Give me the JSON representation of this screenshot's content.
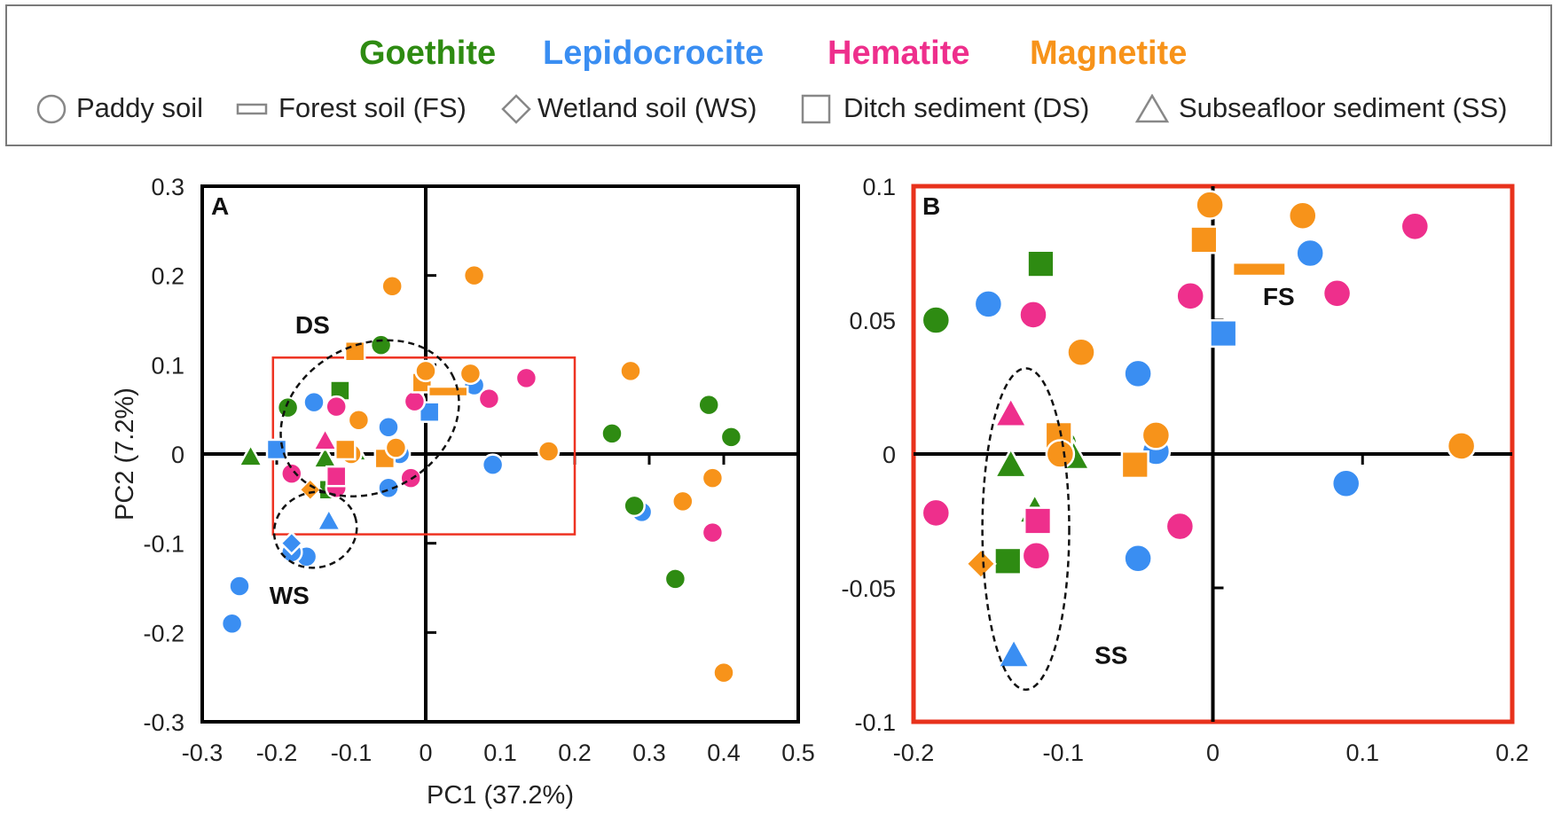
{
  "legend": {
    "minerals": [
      {
        "label": "Goethite",
        "color": "#2e8b12"
      },
      {
        "label": "Lepidocrocite",
        "color": "#3a8ef2"
      },
      {
        "label": "Hematite",
        "color": "#ee2f8c"
      },
      {
        "label": "Magnetite",
        "color": "#f7931a"
      }
    ],
    "samples": [
      {
        "label": "Paddy soil",
        "shape": "circle-icon"
      },
      {
        "label": "Forest soil (FS)",
        "shape": "dash-icon"
      },
      {
        "label": "Wetland soil (WS)",
        "shape": "diamond-icon"
      },
      {
        "label": "Ditch sediment (DS)",
        "shape": "square-icon"
      },
      {
        "label": "Subseafloor sediment (SS)",
        "shape": "triangle-icon"
      }
    ]
  },
  "colors": {
    "Goethite": "#2e8b12",
    "Lepidocrocite": "#3a8ef2",
    "Hematite": "#ee2f8c",
    "Magnetite": "#f7931a",
    "highlight_box": "#ee3322"
  },
  "chart_data": [
    {
      "type": "scatter",
      "panel_label": "A",
      "xlabel": "PC1 (37.2%)",
      "ylabel": "PC2 (7.2%)",
      "xlim": [
        -0.3,
        0.5
      ],
      "ylim": [
        -0.3,
        0.3
      ],
      "xticks": [
        -0.3,
        -0.2,
        -0.1,
        0,
        0.1,
        0.2,
        0.3,
        0.4,
        0.5
      ],
      "yticks": [
        -0.3,
        -0.2,
        -0.1,
        0,
        0.1,
        0.2,
        0.3
      ],
      "xtick_labels": [
        "-0.3",
        "-0.2",
        "-0.1",
        "0",
        "0.1",
        "0.2",
        "0.3",
        "0.4",
        "0.5"
      ],
      "ytick_labels": [
        "-0.3",
        "-0.2",
        "-0.1",
        "0",
        "0.1",
        "0.2",
        "0.3"
      ],
      "zoom_box": {
        "x": [
          -0.205,
          0.2
        ],
        "y": [
          -0.09,
          0.108
        ]
      },
      "clusters": [
        {
          "label": "DS",
          "cx": -0.075,
          "cy": 0.04,
          "rx": 0.125,
          "ry": 0.082,
          "angle": 28,
          "label_x": -0.152,
          "label_y": 0.145
        },
        {
          "label": "WS",
          "cx": -0.148,
          "cy": -0.085,
          "rx": 0.056,
          "ry": 0.042,
          "angle": 18,
          "label_x": -0.183,
          "label_y": -0.158
        }
      ],
      "points": [
        {
          "x": -0.26,
          "y": -0.19,
          "mineral": "Lepidocrocite",
          "shape": "circle"
        },
        {
          "x": -0.25,
          "y": -0.148,
          "mineral": "Lepidocrocite",
          "shape": "circle"
        },
        {
          "x": -0.16,
          "y": -0.115,
          "mineral": "Lepidocrocite",
          "shape": "circle"
        },
        {
          "x": -0.18,
          "y": -0.11,
          "mineral": "Lepidocrocite",
          "shape": "circle"
        },
        {
          "x": -0.18,
          "y": -0.1,
          "mineral": "Lepidocrocite",
          "shape": "diamond"
        },
        {
          "x": -0.13,
          "y": -0.075,
          "mineral": "Lepidocrocite",
          "shape": "triangle"
        },
        {
          "x": -0.05,
          "y": -0.038,
          "mineral": "Lepidocrocite",
          "shape": "circle"
        },
        {
          "x": -0.035,
          "y": 0.0,
          "mineral": "Lepidocrocite",
          "shape": "circle"
        },
        {
          "x": -0.05,
          "y": 0.03,
          "mineral": "Lepidocrocite",
          "shape": "circle"
        },
        {
          "x": -0.15,
          "y": 0.058,
          "mineral": "Lepidocrocite",
          "shape": "circle"
        },
        {
          "x": -0.2,
          "y": 0.005,
          "mineral": "Lepidocrocite",
          "shape": "square"
        },
        {
          "x": 0.005,
          "y": 0.047,
          "mineral": "Lepidocrocite",
          "shape": "square"
        },
        {
          "x": 0.065,
          "y": 0.077,
          "mineral": "Lepidocrocite",
          "shape": "circle"
        },
        {
          "x": 0.09,
          "y": -0.012,
          "mineral": "Lepidocrocite",
          "shape": "circle"
        },
        {
          "x": 0.29,
          "y": -0.065,
          "mineral": "Lepidocrocite",
          "shape": "circle"
        },
        {
          "x": -0.185,
          "y": 0.052,
          "mineral": "Goethite",
          "shape": "circle"
        },
        {
          "x": -0.115,
          "y": 0.071,
          "mineral": "Goethite",
          "shape": "square"
        },
        {
          "x": -0.06,
          "y": 0.122,
          "mineral": "Goethite",
          "shape": "circle"
        },
        {
          "x": -0.235,
          "y": -0.003,
          "mineral": "Goethite",
          "shape": "triangle"
        },
        {
          "x": -0.135,
          "y": -0.005,
          "mineral": "Goethite",
          "shape": "triangle"
        },
        {
          "x": -0.095,
          "y": 0.003,
          "mineral": "Goethite",
          "shape": "triangle"
        },
        {
          "x": -0.13,
          "y": -0.04,
          "mineral": "Goethite",
          "shape": "square"
        },
        {
          "x": 0.25,
          "y": 0.023,
          "mineral": "Goethite",
          "shape": "circle"
        },
        {
          "x": 0.28,
          "y": -0.058,
          "mineral": "Goethite",
          "shape": "circle"
        },
        {
          "x": 0.38,
          "y": 0.055,
          "mineral": "Goethite",
          "shape": "circle"
        },
        {
          "x": 0.41,
          "y": 0.019,
          "mineral": "Goethite",
          "shape": "circle"
        },
        {
          "x": 0.335,
          "y": -0.14,
          "mineral": "Goethite",
          "shape": "circle"
        },
        {
          "x": -0.18,
          "y": -0.022,
          "mineral": "Hematite",
          "shape": "circle"
        },
        {
          "x": -0.12,
          "y": -0.038,
          "mineral": "Hematite",
          "shape": "circle"
        },
        {
          "x": -0.12,
          "y": 0.053,
          "mineral": "Hematite",
          "shape": "circle"
        },
        {
          "x": -0.12,
          "y": -0.025,
          "mineral": "Hematite",
          "shape": "square"
        },
        {
          "x": -0.135,
          "y": 0.015,
          "mineral": "Hematite",
          "shape": "triangle"
        },
        {
          "x": -0.02,
          "y": -0.027,
          "mineral": "Hematite",
          "shape": "circle"
        },
        {
          "x": -0.015,
          "y": 0.059,
          "mineral": "Hematite",
          "shape": "circle"
        },
        {
          "x": 0.085,
          "y": 0.062,
          "mineral": "Hematite",
          "shape": "circle"
        },
        {
          "x": 0.135,
          "y": 0.085,
          "mineral": "Hematite",
          "shape": "circle"
        },
        {
          "x": 0.385,
          "y": -0.088,
          "mineral": "Hematite",
          "shape": "circle"
        },
        {
          "x": -0.045,
          "y": 0.188,
          "mineral": "Magnetite",
          "shape": "circle"
        },
        {
          "x": 0.065,
          "y": 0.2,
          "mineral": "Magnetite",
          "shape": "circle"
        },
        {
          "x": -0.095,
          "y": 0.115,
          "mineral": "Magnetite",
          "shape": "square"
        },
        {
          "x": -0.09,
          "y": 0.038,
          "mineral": "Magnetite",
          "shape": "circle"
        },
        {
          "x": -0.1,
          "y": 0.0,
          "mineral": "Magnetite",
          "shape": "circle"
        },
        {
          "x": -0.108,
          "y": 0.005,
          "mineral": "Magnetite",
          "shape": "square"
        },
        {
          "x": -0.055,
          "y": -0.005,
          "mineral": "Magnetite",
          "shape": "square"
        },
        {
          "x": -0.04,
          "y": 0.007,
          "mineral": "Magnetite",
          "shape": "circle"
        },
        {
          "x": -0.155,
          "y": -0.04,
          "mineral": "Magnetite",
          "shape": "diamond"
        },
        {
          "x": -0.005,
          "y": 0.08,
          "mineral": "Magnetite",
          "shape": "square"
        },
        {
          "x": 0.0,
          "y": 0.093,
          "mineral": "Magnetite",
          "shape": "circle"
        },
        {
          "x": 0.06,
          "y": 0.09,
          "mineral": "Magnetite",
          "shape": "circle"
        },
        {
          "x": 0.03,
          "y": 0.07,
          "mineral": "Magnetite",
          "shape": "dash"
        },
        {
          "x": 0.165,
          "y": 0.003,
          "mineral": "Magnetite",
          "shape": "circle"
        },
        {
          "x": 0.275,
          "y": 0.093,
          "mineral": "Magnetite",
          "shape": "circle"
        },
        {
          "x": 0.345,
          "y": -0.053,
          "mineral": "Magnetite",
          "shape": "circle"
        },
        {
          "x": 0.385,
          "y": -0.027,
          "mineral": "Magnetite",
          "shape": "circle"
        },
        {
          "x": 0.4,
          "y": -0.245,
          "mineral": "Magnetite",
          "shape": "circle"
        }
      ]
    },
    {
      "type": "scatter",
      "panel_label": "B",
      "xlabel": "",
      "ylabel": "",
      "xlim": [
        -0.2,
        0.2
      ],
      "ylim": [
        -0.1,
        0.1
      ],
      "xticks": [
        -0.2,
        -0.1,
        0,
        0.1,
        0.2
      ],
      "yticks": [
        -0.1,
        -0.05,
        0,
        0.05,
        0.1
      ],
      "xtick_labels": [
        "-0.2",
        "-0.1",
        "0",
        "0.1",
        "0.2"
      ],
      "ytick_labels": [
        "-0.1",
        "-0.05",
        "0",
        "0.05",
        "0.1"
      ],
      "clusters": [
        {
          "label": "SS",
          "cx": -0.125,
          "cy": -0.028,
          "rx": 0.029,
          "ry": 0.06,
          "angle": 0,
          "label_x": -0.068,
          "label_y": -0.075
        }
      ],
      "annotations": [
        {
          "label": "FS",
          "x": 0.044,
          "y": 0.059
        }
      ],
      "points": [
        {
          "x": -0.15,
          "y": 0.056,
          "mineral": "Lepidocrocite",
          "shape": "circle"
        },
        {
          "x": -0.05,
          "y": 0.03,
          "mineral": "Lepidocrocite",
          "shape": "circle"
        },
        {
          "x": -0.038,
          "y": 0.001,
          "mineral": "Lepidocrocite",
          "shape": "circle"
        },
        {
          "x": -0.05,
          "y": -0.039,
          "mineral": "Lepidocrocite",
          "shape": "circle"
        },
        {
          "x": 0.007,
          "y": 0.045,
          "mineral": "Lepidocrocite",
          "shape": "square"
        },
        {
          "x": 0.065,
          "y": 0.075,
          "mineral": "Lepidocrocite",
          "shape": "circle"
        },
        {
          "x": 0.089,
          "y": -0.011,
          "mineral": "Lepidocrocite",
          "shape": "circle"
        },
        {
          "x": -0.133,
          "y": -0.075,
          "mineral": "Lepidocrocite",
          "shape": "triangle"
        },
        {
          "x": -0.185,
          "y": 0.05,
          "mineral": "Goethite",
          "shape": "circle"
        },
        {
          "x": -0.115,
          "y": 0.071,
          "mineral": "Goethite",
          "shape": "square"
        },
        {
          "x": -0.1,
          "y": 0.004,
          "mineral": "Goethite",
          "shape": "circle"
        },
        {
          "x": -0.093,
          "y": -0.001,
          "mineral": "Goethite",
          "shape": "triangle"
        },
        {
          "x": -0.135,
          "y": -0.004,
          "mineral": "Goethite",
          "shape": "triangle"
        },
        {
          "x": -0.119,
          "y": -0.021,
          "mineral": "Goethite",
          "shape": "triangle"
        },
        {
          "x": -0.137,
          "y": -0.04,
          "mineral": "Goethite",
          "shape": "square"
        },
        {
          "x": -0.12,
          "y": 0.052,
          "mineral": "Hematite",
          "shape": "circle"
        },
        {
          "x": -0.135,
          "y": 0.015,
          "mineral": "Hematite",
          "shape": "triangle"
        },
        {
          "x": -0.117,
          "y": -0.025,
          "mineral": "Hematite",
          "shape": "square"
        },
        {
          "x": -0.118,
          "y": -0.038,
          "mineral": "Hematite",
          "shape": "circle"
        },
        {
          "x": -0.185,
          "y": -0.022,
          "mineral": "Hematite",
          "shape": "circle"
        },
        {
          "x": -0.022,
          "y": -0.027,
          "mineral": "Hematite",
          "shape": "circle"
        },
        {
          "x": -0.015,
          "y": 0.059,
          "mineral": "Hematite",
          "shape": "circle"
        },
        {
          "x": 0.083,
          "y": 0.06,
          "mineral": "Hematite",
          "shape": "circle"
        },
        {
          "x": 0.135,
          "y": 0.085,
          "mineral": "Hematite",
          "shape": "circle"
        },
        {
          "x": -0.002,
          "y": 0.093,
          "mineral": "Magnetite",
          "shape": "circle"
        },
        {
          "x": 0.06,
          "y": 0.089,
          "mineral": "Magnetite",
          "shape": "circle"
        },
        {
          "x": -0.006,
          "y": 0.08,
          "mineral": "Magnetite",
          "shape": "square"
        },
        {
          "x": 0.031,
          "y": 0.069,
          "mineral": "Magnetite",
          "shape": "dash"
        },
        {
          "x": -0.088,
          "y": 0.038,
          "mineral": "Magnetite",
          "shape": "circle"
        },
        {
          "x": -0.038,
          "y": 0.007,
          "mineral": "Magnetite",
          "shape": "circle"
        },
        {
          "x": -0.103,
          "y": 0.007,
          "mineral": "Magnetite",
          "shape": "square"
        },
        {
          "x": -0.102,
          "y": 0.0,
          "mineral": "Magnetite",
          "shape": "circle"
        },
        {
          "x": -0.052,
          "y": -0.004,
          "mineral": "Magnetite",
          "shape": "square"
        },
        {
          "x": -0.155,
          "y": -0.041,
          "mineral": "Magnetite",
          "shape": "diamond"
        },
        {
          "x": 0.166,
          "y": 0.003,
          "mineral": "Magnetite",
          "shape": "circle"
        }
      ]
    }
  ]
}
